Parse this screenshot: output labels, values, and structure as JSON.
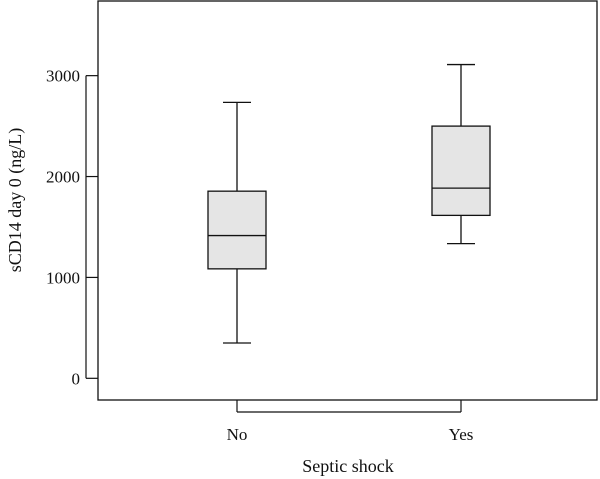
{
  "chart_data": {
    "type": "box",
    "xlabel": "Septic shock",
    "ylabel": "sCD14 day 0 (ng/L)",
    "categories": [
      "No",
      "Yes"
    ],
    "boxes": [
      {
        "category": "No",
        "min": 350,
        "q1": 1085,
        "median": 1415,
        "q3": 1855,
        "max": 2735
      },
      {
        "category": "Yes",
        "min": 1335,
        "q1": 1615,
        "median": 1885,
        "q3": 2500,
        "max": 3110
      }
    ],
    "ylim": [
      -215,
      3740
    ],
    "yticks": [
      0,
      1000,
      2000,
      3000
    ],
    "grid": false,
    "box_fill": "#e5e5e5",
    "line_color": "#111111"
  }
}
